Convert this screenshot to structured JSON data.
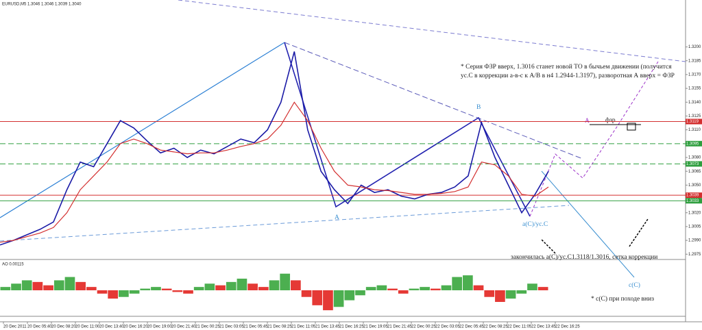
{
  "chart_data": {
    "type": "line",
    "title": "EURUSD,M5  1.3046 1.3046 1.3039 1.3040",
    "xtick_labels": [
      "20 Dec 2011",
      "20 Dec 05:40",
      "20 Dec 08:20",
      "20 Dec 11:00",
      "20 Dec 13:40",
      "20 Dec 16:20",
      "20 Dec 19:00",
      "20 Dec 21:40",
      "21 Dec 00:25",
      "21 Dec 03:05",
      "21 Dec 05:45",
      "21 Dec 08:25",
      "21 Dec 11:05",
      "21 Dec 13:45",
      "21 Dec 16:25",
      "21 Dec 19:05",
      "21 Dec 21:45",
      "22 Dec 00:25",
      "22 Dec 03:05",
      "22 Dec 05:45",
      "22 Dec 08:25",
      "22 Dec 11:05",
      "22 Dec 13:45",
      "22 Dec 16:25"
    ],
    "series": [
      {
        "name": "EURUSD",
        "color": "#1a1aa6",
        "values": [
          1.2985,
          1.299,
          1.2996,
          1.3002,
          1.301,
          1.3045,
          1.3075,
          1.307,
          1.3095,
          1.312,
          1.3112,
          1.3098,
          1.3085,
          1.309,
          1.308,
          1.3088,
          1.3084,
          1.3092,
          1.31,
          1.3096,
          1.311,
          1.314,
          1.3195,
          1.311,
          1.3065,
          1.3045,
          1.303,
          1.305,
          1.3042,
          1.3045,
          1.3038,
          1.3035,
          1.304,
          1.3042,
          1.3048,
          1.306,
          1.3118,
          1.308,
          1.305,
          1.302,
          1.304,
          1.3065
        ]
      },
      {
        "name": "MA",
        "color": "#d32f2f",
        "values": [
          1.2988,
          1.299,
          1.2994,
          1.2998,
          1.3004,
          1.302,
          1.3045,
          1.306,
          1.3075,
          1.3095,
          1.31,
          1.3095,
          1.3088,
          1.3086,
          1.3084,
          1.3085,
          1.3085,
          1.3088,
          1.3092,
          1.3095,
          1.31,
          1.3115,
          1.314,
          1.312,
          1.309,
          1.3065,
          1.305,
          1.3048,
          1.3045,
          1.3044,
          1.3042,
          1.304,
          1.304,
          1.3041,
          1.3043,
          1.3048,
          1.3075,
          1.3072,
          1.306,
          1.304,
          1.3038,
          1.3048
        ]
      }
    ],
    "ylim": [
      1.297,
      1.3245
    ],
    "yticks": [
      1.2975,
      {
        "value": 1.299,
        "label": "1.2990"
      },
      1.3005,
      {
        "value": 1.302,
        "label": "1.3020"
      },
      1.3035,
      {
        "value": 1.305,
        "label": "1.3050"
      },
      1.3065,
      {
        "value": 1.308,
        "label": "1.3080"
      },
      1.3095,
      {
        "value": 1.311,
        "label": "1.3110"
      },
      1.3125,
      {
        "value": 1.314,
        "label": "1.3140"
      },
      1.3155,
      {
        "value": 1.317,
        "label": "1.3170"
      },
      1.3185,
      {
        "value": 1.32,
        "label": "1.3200"
      }
    ],
    "grid": false,
    "price_levels": [
      1.3119,
      1.3095,
      1.3073,
      1.3039,
      1.3033
    ],
    "price_level_colors": [
      "#d32f2f",
      "#2e9e3e",
      "#2e9e3e",
      "#d32f2f",
      "#2e9e3e"
    ],
    "price_level_dashed": [
      false,
      true,
      true,
      false,
      false
    ],
    "annotations": {
      "note_1": [
        "* Серия ФЗР вверх, 1.3016 станет новой ТО в бычьем движении (получится",
        "ус.С в коррекции а-в-с к А/В в н4 1.2944-1.3197), разворотная А вверх = ФЗР"
      ],
      "note_2": "закончилась а(С)/ус.С1.3118/1.3016, сетка коррекции",
      "note_3": "* c(C) при походе вниз",
      "wave_a": "A",
      "wave_b": "B",
      "wave_ac": "a(C)/ус.С",
      "wave_cc": "c(C)",
      "wave_a2": "A",
      "fzr": "фзр"
    },
    "ao": {
      "label": "AO 0.00115",
      "up_color": "#4caf50",
      "down_color": "#e53935",
      "ylim": [
        -0.0014,
        0.0014
      ],
      "values": [
        0.0002,
        0.0004,
        0.0006,
        0.0005,
        0.0003,
        0.0006,
        0.0008,
        0.0005,
        0.0002,
        -0.0002,
        -0.0005,
        -0.0004,
        -0.0002,
        0.0001,
        0.0002,
        0.0001,
        -0.0001,
        -0.0002,
        0.0002,
        0.0004,
        0.0003,
        0.0005,
        0.0007,
        0.0004,
        0.0002,
        0.0006,
        0.001,
        0.0006,
        -0.0004,
        -0.0009,
        -0.0012,
        -0.001,
        -0.0006,
        -0.0003,
        0.0002,
        0.0003,
        0.0001,
        -0.0002,
        0.0001,
        0.0002,
        0.0001,
        0.0003,
        0.0008,
        0.0009,
        0.0003,
        -0.0004,
        -0.0007,
        -0.0005,
        -0.0002,
        0.0004,
        0.0002
      ]
    }
  }
}
